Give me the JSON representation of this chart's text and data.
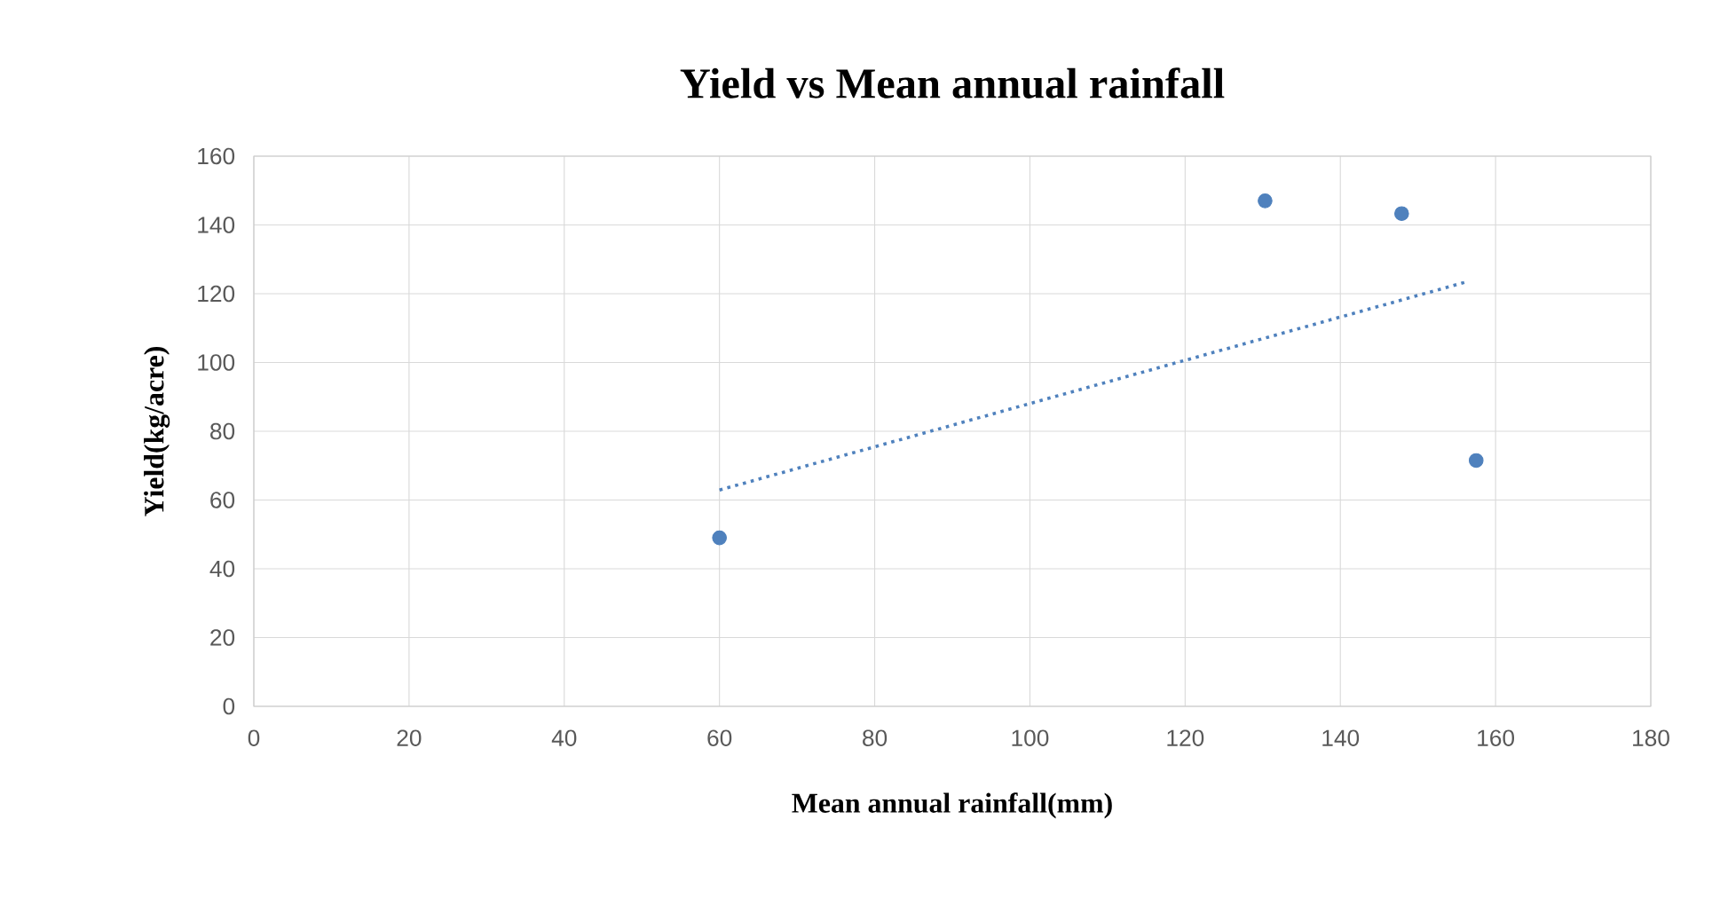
{
  "chart_data": {
    "type": "scatter",
    "title": "Yield vs Mean annual rainfall",
    "xlabel": "Mean annual rainfall(mm)",
    "ylabel": "Yield(kg/acre)",
    "xlim": [
      0,
      180
    ],
    "xticks": [
      0,
      20,
      40,
      60,
      80,
      100,
      120,
      140,
      160,
      180
    ],
    "ylim": [
      0,
      160
    ],
    "yticks": [
      0,
      20,
      40,
      60,
      80,
      100,
      120,
      140,
      160
    ],
    "grid": true,
    "series": [
      {
        "color": "#4f81bd",
        "marker": "circle",
        "x": [
          60,
          130.3,
          147.9,
          157.5
        ],
        "values": [
          49,
          147,
          143.3,
          71.5
        ]
      },
      {
        "type": "line",
        "color": "#4f81bd",
        "line_style": "dotted",
        "marker": "none",
        "x": [
          60,
          156.2
        ],
        "values": [
          62.9,
          123.4
        ]
      }
    ]
  }
}
